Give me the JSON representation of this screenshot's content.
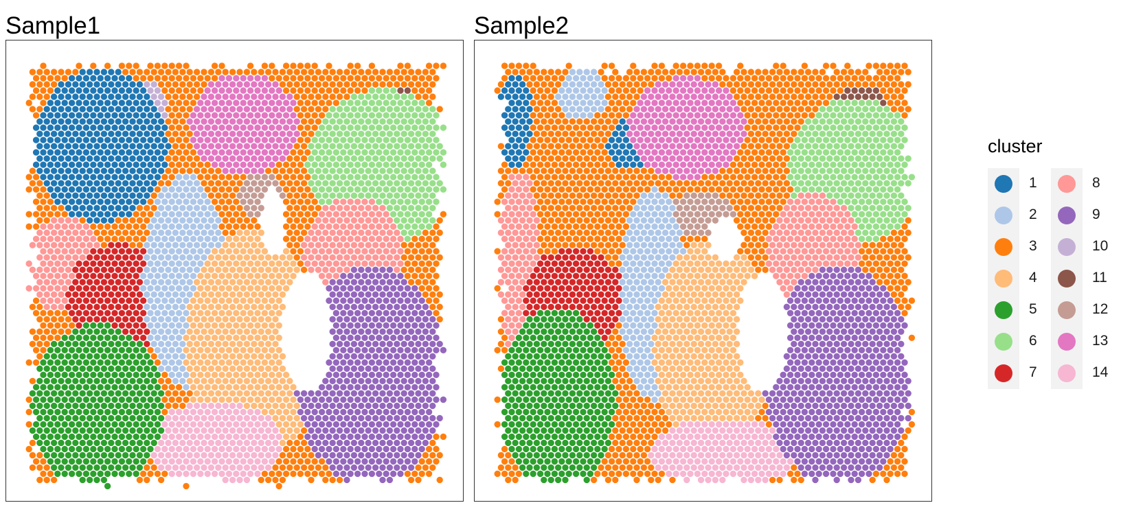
{
  "chart_data": [
    {
      "type": "scatter",
      "title": "Sample1",
      "xlabel": "",
      "ylabel": "",
      "grid": false,
      "description_of_marks": "hexagonal grid of spatial spots coloured by cluster",
      "regions": [
        {
          "cluster": 9,
          "cx": 0.82,
          "cy": 0.74,
          "rx": 0.18,
          "ry": 0.26
        },
        {
          "cluster": 5,
          "cx": 0.17,
          "cy": 0.82,
          "rx": 0.16,
          "ry": 0.2
        },
        {
          "cluster": 14,
          "cx": 0.45,
          "cy": 0.9,
          "rx": 0.16,
          "ry": 0.1
        },
        {
          "cluster": 4,
          "cx": 0.54,
          "cy": 0.67,
          "rx": 0.16,
          "ry": 0.27
        },
        {
          "cluster": 2,
          "cx": 0.38,
          "cy": 0.52,
          "rx": 0.1,
          "ry": 0.25
        },
        {
          "cluster": 7,
          "cx": 0.22,
          "cy": 0.56,
          "rx": 0.12,
          "ry": 0.13
        },
        {
          "cluster": 8,
          "cx": 0.09,
          "cy": 0.48,
          "rx": 0.1,
          "ry": 0.11
        },
        {
          "cluster": 8,
          "cx": 0.78,
          "cy": 0.46,
          "rx": 0.12,
          "ry": 0.14
        },
        {
          "cluster": 6,
          "cx": 0.85,
          "cy": 0.25,
          "rx": 0.18,
          "ry": 0.18
        },
        {
          "cluster": 11,
          "cx": 0.88,
          "cy": 0.18,
          "rx": 0.08,
          "ry": 0.12
        },
        {
          "cluster": 13,
          "cx": 0.52,
          "cy": 0.15,
          "rx": 0.13,
          "ry": 0.12
        },
        {
          "cluster": 1,
          "cx": 0.18,
          "cy": 0.2,
          "rx": 0.16,
          "ry": 0.18
        },
        {
          "cluster": 10,
          "cx": 0.28,
          "cy": 0.13,
          "rx": 0.06,
          "ry": 0.08
        },
        {
          "cluster": 12,
          "cx": 0.56,
          "cy": 0.32,
          "rx": 0.06,
          "ry": 0.05
        },
        {
          "cluster": 3,
          "cx": 0.55,
          "cy": 0.4,
          "rx": 0.4,
          "ry": 0.4
        }
      ],
      "holes": [
        {
          "cx": 0.67,
          "cy": 0.64,
          "rx": 0.06,
          "ry": 0.14
        },
        {
          "cx": 0.59,
          "cy": 0.38,
          "rx": 0.03,
          "ry": 0.08
        }
      ]
    },
    {
      "type": "scatter",
      "title": "Sample2",
      "xlabel": "",
      "ylabel": "",
      "grid": false,
      "description_of_marks": "hexagonal grid of spatial spots coloured by cluster",
      "regions": [
        {
          "cluster": 9,
          "cx": 0.82,
          "cy": 0.74,
          "rx": 0.18,
          "ry": 0.26
        },
        {
          "cluster": 5,
          "cx": 0.15,
          "cy": 0.8,
          "rx": 0.14,
          "ry": 0.22
        },
        {
          "cluster": 14,
          "cx": 0.55,
          "cy": 0.92,
          "rx": 0.18,
          "ry": 0.08
        },
        {
          "cluster": 4,
          "cx": 0.52,
          "cy": 0.67,
          "rx": 0.14,
          "ry": 0.25
        },
        {
          "cluster": 2,
          "cx": 0.38,
          "cy": 0.55,
          "rx": 0.08,
          "ry": 0.25
        },
        {
          "cluster": 7,
          "cx": 0.19,
          "cy": 0.56,
          "rx": 0.12,
          "ry": 0.12
        },
        {
          "cluster": 8,
          "cx": 0.06,
          "cy": 0.48,
          "rx": 0.05,
          "ry": 0.22
        },
        {
          "cluster": 8,
          "cx": 0.76,
          "cy": 0.45,
          "rx": 0.11,
          "ry": 0.14
        },
        {
          "cluster": 6,
          "cx": 0.86,
          "cy": 0.26,
          "rx": 0.16,
          "ry": 0.17
        },
        {
          "cluster": 11,
          "cx": 0.87,
          "cy": 0.18,
          "rx": 0.09,
          "ry": 0.12
        },
        {
          "cluster": 13,
          "cx": 0.46,
          "cy": 0.16,
          "rx": 0.14,
          "ry": 0.12
        },
        {
          "cluster": 1,
          "cx": 0.05,
          "cy": 0.14,
          "rx": 0.04,
          "ry": 0.11
        },
        {
          "cluster": 1,
          "cx": 0.32,
          "cy": 0.2,
          "rx": 0.05,
          "ry": 0.06
        },
        {
          "cluster": 2,
          "cx": 0.21,
          "cy": 0.08,
          "rx": 0.06,
          "ry": 0.06
        },
        {
          "cluster": 12,
          "cx": 0.49,
          "cy": 0.36,
          "rx": 0.08,
          "ry": 0.05
        },
        {
          "cluster": 3,
          "cx": 0.5,
          "cy": 0.4,
          "rx": 0.45,
          "ry": 0.42
        }
      ],
      "holes": [
        {
          "cx": 0.64,
          "cy": 0.64,
          "rx": 0.06,
          "ry": 0.14
        },
        {
          "cx": 0.55,
          "cy": 0.42,
          "rx": 0.04,
          "ry": 0.05
        }
      ]
    }
  ],
  "legend": {
    "title": "cluster",
    "items": [
      {
        "label": "1",
        "color": "#1f77b4"
      },
      {
        "label": "2",
        "color": "#aec7e8"
      },
      {
        "label": "3",
        "color": "#ff7f0e"
      },
      {
        "label": "4",
        "color": "#ffbb78"
      },
      {
        "label": "5",
        "color": "#2ca02c"
      },
      {
        "label": "6",
        "color": "#98df8a"
      },
      {
        "label": "7",
        "color": "#d62728"
      },
      {
        "label": "8",
        "color": "#ff9896"
      },
      {
        "label": "9",
        "color": "#9467bd"
      },
      {
        "label": "10",
        "color": "#c5b0d5"
      },
      {
        "label": "11",
        "color": "#8c564b"
      },
      {
        "label": "12",
        "color": "#c49c94"
      },
      {
        "label": "13",
        "color": "#e377c2"
      },
      {
        "label": "14",
        "color": "#f7b6d2"
      }
    ]
  }
}
